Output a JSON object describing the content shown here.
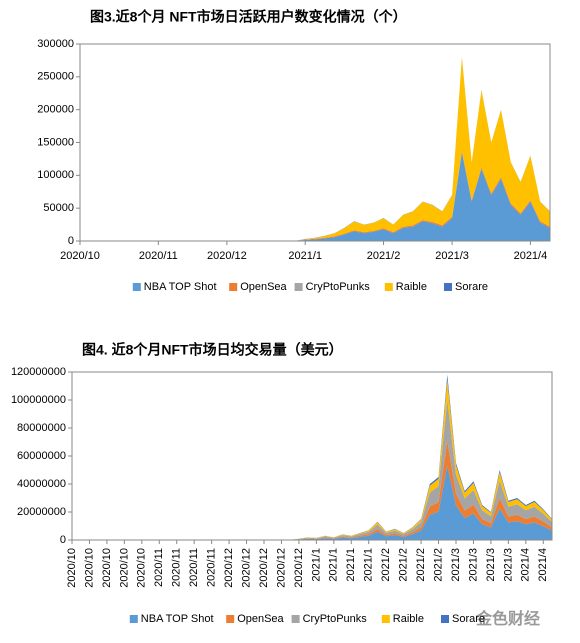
{
  "chart_data": [
    {
      "type": "stacked_area",
      "title": "图3.近8个月 NFT市场日活跃用户数变化情况（个）",
      "categories": [
        "2020/10",
        null,
        null,
        null,
        null,
        null,
        null,
        null,
        "2020/11",
        null,
        null,
        null,
        null,
        null,
        null,
        "2020/12",
        null,
        null,
        null,
        null,
        null,
        null,
        null,
        "2021/1",
        null,
        null,
        null,
        null,
        null,
        null,
        null,
        "2021/2",
        null,
        null,
        null,
        null,
        null,
        null,
        "2021/3",
        null,
        null,
        null,
        null,
        null,
        null,
        null,
        "2021/4",
        null,
        null
      ],
      "series": [
        {
          "name": "NBA TOP Shot",
          "color": "#5b9bd5",
          "values": [
            200,
            200,
            200,
            200,
            200,
            200,
            200,
            200,
            200,
            200,
            200,
            200,
            200,
            200,
            200,
            200,
            200,
            200,
            200,
            200,
            200,
            200,
            200,
            1500,
            2500,
            4000,
            6000,
            10000,
            15000,
            12000,
            14000,
            18000,
            12000,
            20000,
            22000,
            30000,
            27000,
            22000,
            35000,
            135000,
            60000,
            110000,
            70000,
            95000,
            55000,
            40000,
            60000,
            28000,
            20000
          ]
        },
        {
          "name": "OpenSea",
          "color": "#ed7d31",
          "values": [
            100,
            100,
            100,
            100,
            100,
            100,
            100,
            100,
            100,
            100,
            100,
            100,
            100,
            100,
            100,
            100,
            100,
            100,
            100,
            100,
            100,
            100,
            100,
            800,
            900,
            1000,
            1100,
            1200,
            1300,
            1300,
            1400,
            1500,
            1500,
            1600,
            1700,
            1800,
            1900,
            2000,
            2100,
            2500,
            2300,
            2400,
            2300,
            2400,
            2200,
            2100,
            2200,
            2000,
            1900
          ]
        },
        {
          "name": "CryPtoPunks",
          "color": "#a5a5a5",
          "values": [
            50,
            50,
            50,
            50,
            50,
            50,
            50,
            50,
            50,
            50,
            50,
            50,
            50,
            50,
            50,
            50,
            50,
            50,
            50,
            50,
            50,
            50,
            50,
            50,
            50,
            50,
            50,
            50,
            50,
            50,
            50,
            50,
            50,
            50,
            50,
            50,
            50,
            50,
            50,
            50,
            50,
            50,
            50,
            50,
            50,
            50,
            50,
            50,
            50
          ]
        },
        {
          "name": "Raible",
          "color": "#ffc000",
          "values": [
            100,
            100,
            100,
            100,
            100,
            100,
            100,
            100,
            100,
            100,
            100,
            100,
            100,
            100,
            100,
            100,
            100,
            100,
            100,
            100,
            100,
            100,
            100,
            350,
            1250,
            2650,
            4550,
            8450,
            13350,
            11350,
            12250,
            15150,
            11150,
            18050,
            20950,
            27850,
            25750,
            20650,
            32550,
            142150,
            57350,
            117250,
            77350,
            102250,
            62450,
            47550,
            67450,
            29650,
            22750
          ]
        },
        {
          "name": "Sorare",
          "color": "#4472c4",
          "values": [
            50,
            50,
            50,
            50,
            50,
            50,
            50,
            50,
            50,
            50,
            50,
            50,
            50,
            50,
            50,
            50,
            50,
            50,
            50,
            50,
            50,
            50,
            50,
            300,
            300,
            300,
            300,
            300,
            300,
            300,
            300,
            300,
            300,
            300,
            300,
            300,
            300,
            300,
            300,
            300,
            300,
            300,
            300,
            300,
            300,
            300,
            300,
            300,
            300
          ]
        }
      ],
      "ylim": [
        0,
        300000
      ],
      "yticks": [
        0,
        50000,
        100000,
        150000,
        200000,
        250000,
        300000
      ],
      "grid": false,
      "legend": "bottom",
      "x_label_rotation": 0
    },
    {
      "type": "stacked_area",
      "title": "图4. 近8个月NFT市场日均交易量（美元）",
      "categories": [
        "2020/10",
        null,
        "2020/10",
        null,
        "2020/10",
        null,
        "2020/10",
        null,
        "2020/10",
        null,
        "2020/11",
        null,
        "2020/11",
        null,
        "2020/11",
        null,
        "2020/11",
        null,
        "2020/12",
        null,
        "2020/12",
        null,
        "2020/12",
        null,
        "2020/12",
        null,
        "2020/12",
        null,
        "2021/1",
        null,
        "2021/1",
        null,
        "2021/1",
        null,
        "2021/1",
        null,
        "2021/2",
        null,
        "2021/2",
        null,
        "2021/2",
        null,
        "2021/2",
        null,
        "2021/3",
        null,
        "2021/3",
        null,
        "2021/3",
        null,
        "2021/3",
        null,
        "2021/4",
        null,
        "2021/4",
        null
      ],
      "series": [
        {
          "name": "NBA TOP Shot",
          "color": "#5b9bd5",
          "values": [
            100000,
            100000,
            100000,
            100000,
            100000,
            100000,
            100000,
            100000,
            100000,
            100000,
            100000,
            100000,
            100000,
            100000,
            100000,
            100000,
            100000,
            100000,
            100000,
            100000,
            100000,
            100000,
            100000,
            100000,
            100000,
            100000,
            450000,
            900000,
            675000,
            1350000,
            900000,
            1800000,
            1350000,
            2250000,
            3150000,
            5850000,
            2700000,
            3600000,
            2250000,
            4050000,
            6750000,
            18000000,
            20250000,
            53100000,
            24750000,
            15750000,
            18900000,
            11250000,
            9000000,
            22500000,
            12600000,
            13500000,
            11250000,
            12600000,
            9900000,
            6750000
          ]
        },
        {
          "name": "OpenSea",
          "color": "#ed7d31",
          "values": [
            20000,
            20000,
            20000,
            20000,
            20000,
            20000,
            20000,
            20000,
            20000,
            20000,
            20000,
            20000,
            20000,
            20000,
            20000,
            20000,
            20000,
            20000,
            20000,
            20000,
            20000,
            20000,
            20000,
            20000,
            20000,
            20000,
            150000,
            300000,
            225000,
            450000,
            300000,
            600000,
            450000,
            750000,
            1050000,
            1950000,
            900000,
            1200000,
            750000,
            1350000,
            2250000,
            6000000,
            6750000,
            17700000,
            8250000,
            5250000,
            6300000,
            3750000,
            3000000,
            7500000,
            4200000,
            4500000,
            3750000,
            4200000,
            3300000,
            2250000
          ]
        },
        {
          "name": "CryPtoPunks",
          "color": "#a5a5a5",
          "values": [
            50000,
            50000,
            50000,
            50000,
            50000,
            50000,
            50000,
            50000,
            50000,
            50000,
            50000,
            50000,
            50000,
            50000,
            50000,
            50000,
            50000,
            50000,
            50000,
            50000,
            50000,
            50000,
            50000,
            50000,
            50000,
            50000,
            250000,
            500000,
            375000,
            750000,
            500000,
            1000000,
            750000,
            1250000,
            1750000,
            3250000,
            1500000,
            2000000,
            1250000,
            2250000,
            3750000,
            10000000,
            11250000,
            29500000,
            13750000,
            8750000,
            10500000,
            6250000,
            5000000,
            12500000,
            7000000,
            7500000,
            6250000,
            7000000,
            5500000,
            3750000
          ]
        },
        {
          "name": "Raible",
          "color": "#ffc000",
          "values": [
            20000,
            20000,
            20000,
            20000,
            20000,
            20000,
            20000,
            20000,
            20000,
            20000,
            20000,
            20000,
            20000,
            20000,
            20000,
            20000,
            20000,
            20000,
            20000,
            20000,
            20000,
            20000,
            20000,
            20000,
            20000,
            20000,
            120000,
            240000,
            180000,
            360000,
            240000,
            480000,
            360000,
            600000,
            840000,
            1560000,
            720000,
            960000,
            600000,
            1080000,
            1800000,
            4800000,
            5400000,
            14160000,
            6600000,
            4200000,
            5040000,
            3000000,
            2400000,
            6000000,
            3360000,
            3600000,
            3000000,
            3360000,
            2640000,
            1800000
          ]
        },
        {
          "name": "Sorare",
          "color": "#4472c4",
          "values": [
            10000,
            10000,
            10000,
            10000,
            10000,
            10000,
            10000,
            10000,
            10000,
            10000,
            10000,
            10000,
            10000,
            10000,
            10000,
            10000,
            10000,
            10000,
            10000,
            10000,
            10000,
            10000,
            10000,
            10000,
            10000,
            10000,
            30000,
            60000,
            45000,
            90000,
            60000,
            120000,
            90000,
            150000,
            210000,
            390000,
            180000,
            240000,
            150000,
            270000,
            450000,
            1200000,
            1350000,
            3540000,
            1650000,
            1050000,
            1260000,
            750000,
            600000,
            1500000,
            840000,
            900000,
            750000,
            840000,
            660000,
            450000
          ]
        }
      ],
      "ylim": [
        0,
        120000000
      ],
      "yticks": [
        0,
        20000000,
        40000000,
        60000000,
        80000000,
        100000000,
        120000000
      ],
      "grid": false,
      "legend": "bottom",
      "x_label_rotation": -90
    }
  ],
  "watermark": "金色财经"
}
